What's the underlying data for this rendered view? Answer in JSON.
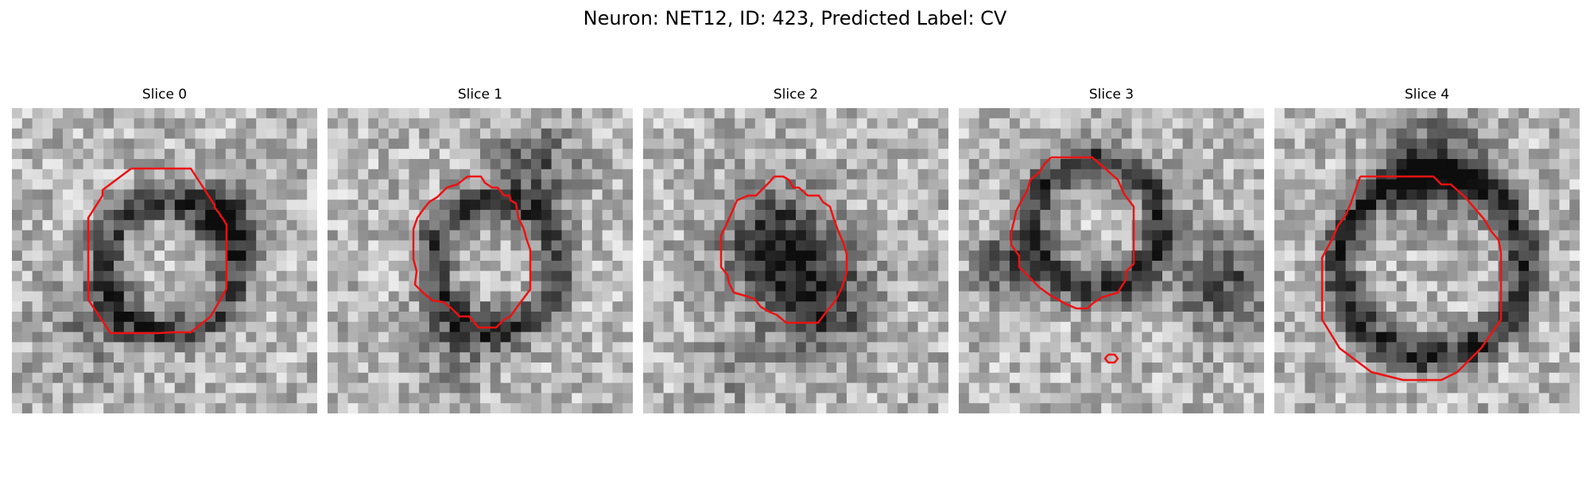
{
  "figure": {
    "title": "Neuron: NET12, ID: 423, Predicted Label: CV"
  },
  "panels": [
    {
      "title": "Slice 0"
    },
    {
      "title": "Slice 1"
    },
    {
      "title": "Slice 2"
    },
    {
      "title": "Slice 3"
    },
    {
      "title": "Slice 4"
    }
  ],
  "colors": {
    "contour": "#ee1111",
    "background": "#ffffff"
  }
}
